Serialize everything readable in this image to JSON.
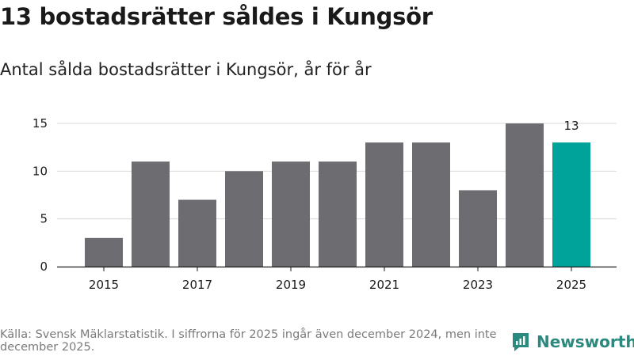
{
  "header": {
    "title": "13 bostadsrätter såldes i Kungsör",
    "subtitle": "Antal sålda bostadsrätter i Kungsör, år för år"
  },
  "footer": {
    "source": "Källa: Svensk Mäklarstatistik. I siffrorna för 2025 ingår även december 2024, men inte december 2025.",
    "brand": "Newsworthy"
  },
  "colors": {
    "bar": "#6d6c71",
    "highlight": "#00a39a",
    "grid": "#d9d9d9",
    "axis": "#1a1a1a",
    "brand": "#2b8a7e"
  },
  "chart_data": {
    "type": "bar",
    "title": "Antal sålda bostadsrätter i Kungsör, år för år",
    "xlabel": "",
    "ylabel": "",
    "categories": [
      "2015",
      "2016",
      "2017",
      "2018",
      "2019",
      "2020",
      "2021",
      "2022",
      "2023",
      "2024",
      "2025"
    ],
    "values": [
      3,
      11,
      7,
      10,
      11,
      11,
      13,
      13,
      8,
      15,
      13
    ],
    "x_tick_labels": [
      "2015",
      "2017",
      "2019",
      "2021",
      "2023",
      "2025"
    ],
    "y_ticks": [
      0,
      5,
      10,
      15
    ],
    "ylim": [
      0,
      15
    ],
    "grid": true,
    "highlight_category": "2025",
    "data_labels": [
      {
        "category": "2025",
        "text": "13"
      }
    ]
  }
}
